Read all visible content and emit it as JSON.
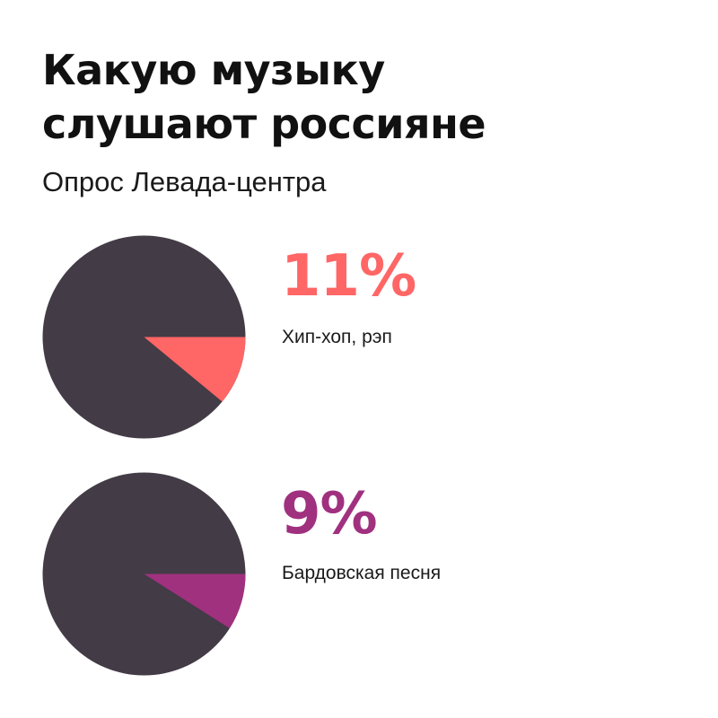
{
  "header": {
    "title_line1": "Какую музыку",
    "title_line2": "слушают россияне",
    "subtitle": "Опрос Левада-центра"
  },
  "colors": {
    "pie_base": "#433b46",
    "accent_1": "#ff6666",
    "accent_2": "#a0317f"
  },
  "chart_data": [
    {
      "type": "pie",
      "categories": [
        "Хип-хоп, рэп",
        ""
      ],
      "values": [
        11,
        89
      ],
      "percent_label": "11%",
      "label": "Хип-хоп, рэп",
      "colors": [
        "#ff6666",
        "#433b46"
      ]
    },
    {
      "type": "pie",
      "categories": [
        "Бардовская песня",
        ""
      ],
      "values": [
        9,
        91
      ],
      "percent_label": "9%",
      "label": "Бардовская песня",
      "colors": [
        "#a0317f",
        "#433b46"
      ]
    }
  ]
}
